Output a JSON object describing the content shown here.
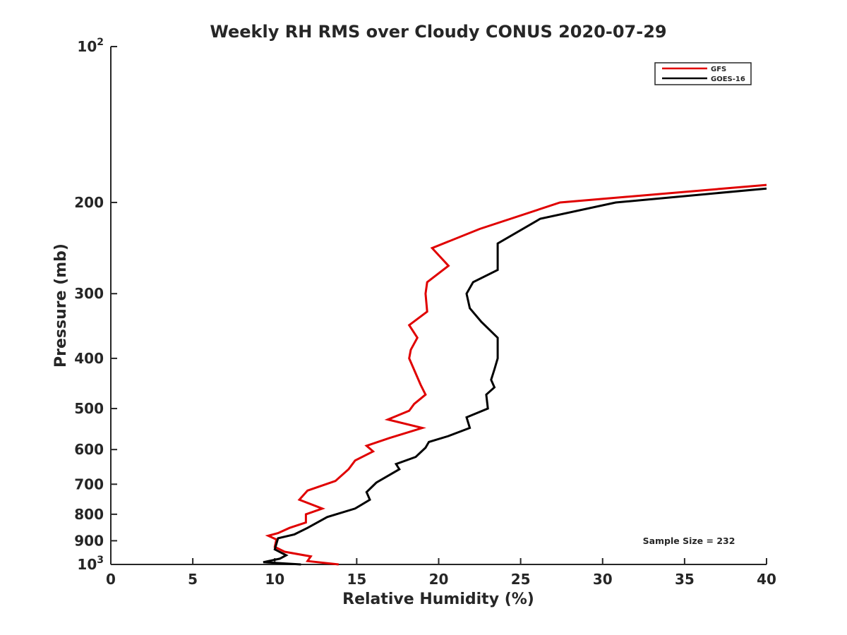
{
  "chart_data": {
    "type": "line",
    "title": "Weekly RH RMS over Cloudy CONUS 2020-07-29",
    "xlabel": "Relative Humidity (%)",
    "ylabel": "Pressure (mb)",
    "xlim": [
      0,
      40
    ],
    "ylim": [
      100,
      1000
    ],
    "y_scale": "log",
    "y_reversed": true,
    "x_ticks": [
      0,
      5,
      10,
      15,
      20,
      25,
      30,
      35,
      40
    ],
    "x_tick_labels": [
      "0",
      "5",
      "10",
      "15",
      "20",
      "25",
      "30",
      "35",
      "40"
    ],
    "y_ticks": [
      {
        "value": 100,
        "label": "10",
        "sup": "2"
      },
      {
        "value": 200,
        "label": "200",
        "sup": ""
      },
      {
        "value": 300,
        "label": "300",
        "sup": ""
      },
      {
        "value": 400,
        "label": "400",
        "sup": ""
      },
      {
        "value": 500,
        "label": "500",
        "sup": ""
      },
      {
        "value": 600,
        "label": "600",
        "sup": ""
      },
      {
        "value": 700,
        "label": "700",
        "sup": ""
      },
      {
        "value": 800,
        "label": "800",
        "sup": ""
      },
      {
        "value": 900,
        "label": "900",
        "sup": ""
      },
      {
        "value": 1000,
        "label": "10",
        "sup": "3"
      }
    ],
    "grid": false,
    "legend_position": "top-right",
    "annotation": "Sample Size = 232",
    "series": [
      {
        "name": "GFS",
        "color": "#e00000",
        "points": [
          [
            40.0,
            185
          ],
          [
            27.4,
            200
          ],
          [
            22.5,
            225
          ],
          [
            19.6,
            245
          ],
          [
            20.6,
            265
          ],
          [
            19.3,
            285
          ],
          [
            19.2,
            300
          ],
          [
            19.3,
            325
          ],
          [
            18.2,
            345
          ],
          [
            18.7,
            365
          ],
          [
            18.3,
            385
          ],
          [
            18.2,
            400
          ],
          [
            18.9,
            450
          ],
          [
            19.2,
            470
          ],
          [
            18.5,
            490
          ],
          [
            18.2,
            505
          ],
          [
            16.9,
            525
          ],
          [
            19.0,
            545
          ],
          [
            17.0,
            570
          ],
          [
            15.6,
            590
          ],
          [
            16.0,
            605
          ],
          [
            14.9,
            630
          ],
          [
            14.5,
            655
          ],
          [
            13.7,
            690
          ],
          [
            12.0,
            720
          ],
          [
            11.5,
            750
          ],
          [
            12.9,
            780
          ],
          [
            11.9,
            800
          ],
          [
            11.9,
            830
          ],
          [
            10.9,
            850
          ],
          [
            10.2,
            870
          ],
          [
            9.6,
            880
          ],
          [
            10.1,
            895
          ],
          [
            10.0,
            925
          ],
          [
            10.6,
            945
          ],
          [
            12.2,
            965
          ],
          [
            12.0,
            985
          ],
          [
            13.9,
            1000
          ]
        ]
      },
      {
        "name": "GOES-16",
        "color": "#000000",
        "points": [
          [
            40.0,
            188
          ],
          [
            30.8,
            200
          ],
          [
            26.2,
            215
          ],
          [
            23.6,
            240
          ],
          [
            23.6,
            270
          ],
          [
            22.1,
            285
          ],
          [
            21.7,
            300
          ],
          [
            21.9,
            320
          ],
          [
            22.6,
            340
          ],
          [
            23.6,
            365
          ],
          [
            23.6,
            400
          ],
          [
            23.4,
            420
          ],
          [
            23.2,
            440
          ],
          [
            23.4,
            455
          ],
          [
            22.9,
            470
          ],
          [
            23.0,
            500
          ],
          [
            21.7,
            520
          ],
          [
            21.9,
            545
          ],
          [
            20.6,
            565
          ],
          [
            19.4,
            580
          ],
          [
            19.2,
            595
          ],
          [
            18.6,
            620
          ],
          [
            17.4,
            640
          ],
          [
            17.6,
            655
          ],
          [
            16.2,
            695
          ],
          [
            15.6,
            725
          ],
          [
            15.8,
            750
          ],
          [
            14.9,
            780
          ],
          [
            13.2,
            810
          ],
          [
            12.0,
            850
          ],
          [
            11.2,
            875
          ],
          [
            10.2,
            890
          ],
          [
            10.0,
            935
          ],
          [
            10.7,
            960
          ],
          [
            10.3,
            975
          ],
          [
            9.3,
            990
          ],
          [
            11.6,
            1000
          ]
        ]
      }
    ]
  }
}
